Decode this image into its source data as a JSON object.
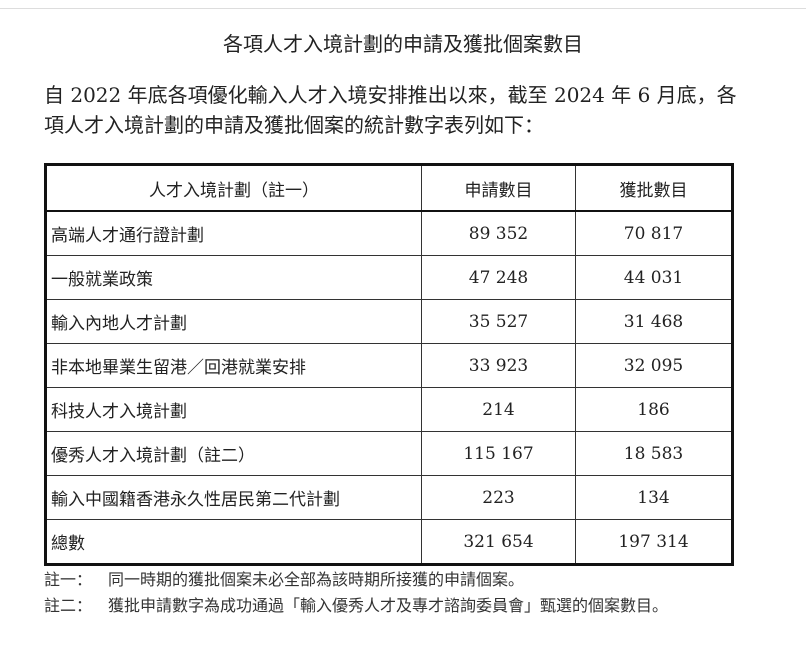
{
  "title": "各項人才入境計劃的申請及獲批個案數目",
  "intro": "自 2022 年底各項優化輸入人才入境安排推出以來，截至 2024 年 6 月底，各項人才入境計劃的申請及獲批個案的統計數字表列如下：",
  "table": {
    "headers": [
      "人才入境計劃（註一）",
      "申請數目",
      "獲批數目"
    ],
    "rows": [
      [
        "高端人才通行證計劃",
        "89 352",
        "70 817"
      ],
      [
        "一般就業政策",
        "47 248",
        "44 031"
      ],
      [
        "輸入內地人才計劃",
        "35 527",
        "31 468"
      ],
      [
        "非本地畢業生留港／回港就業安排",
        "33 923",
        "32 095"
      ],
      [
        "科技人才入境計劃",
        "214",
        "186"
      ],
      [
        "優秀人才入境計劃（註二）",
        "115 167",
        "18 583"
      ],
      [
        "輸入中國籍香港永久性居民第二代計劃",
        "223",
        "134"
      ],
      [
        "總數",
        "321 654",
        "197 314"
      ]
    ]
  },
  "notes": [
    {
      "label": "註一：",
      "text": "同一時期的獲批個案未必全部為該時期所接獲的申請個案。"
    },
    {
      "label": "註二：",
      "text": "獲批申請數字為成功通過「輸入優秀人才及專才諮詢委員會」甄選的個案數目。"
    }
  ]
}
